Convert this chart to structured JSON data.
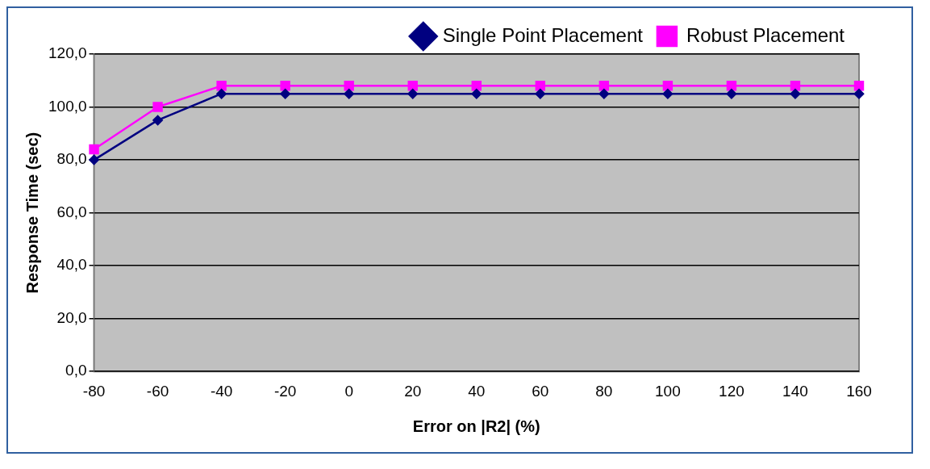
{
  "chart_data": {
    "type": "line",
    "xlabel": "Error on |R2| (%)",
    "ylabel": "Response Time (sec)",
    "categories": [
      "-80",
      "-60",
      "-40",
      "-20",
      "0",
      "20",
      "40",
      "60",
      "80",
      "100",
      "120",
      "140",
      "160"
    ],
    "series": [
      {
        "name": "Single Point Placement",
        "color": "#000080",
        "marker": "diamond",
        "values": [
          80,
          95,
          105,
          105,
          105,
          105,
          105,
          105,
          105,
          105,
          105,
          105,
          105
        ]
      },
      {
        "name": "Robust Placement",
        "color": "#ff00ff",
        "marker": "square",
        "values": [
          84,
          100,
          108,
          108,
          108,
          108,
          108,
          108,
          108,
          108,
          108,
          108,
          108
        ]
      }
    ],
    "ylim": [
      0,
      120
    ],
    "yticks": [
      {
        "value": 0,
        "label": "0,0"
      },
      {
        "value": 20,
        "label": "20,0"
      },
      {
        "value": 40,
        "label": "40,0"
      },
      {
        "value": 60,
        "label": "60,0"
      },
      {
        "value": 80,
        "label": "80,0"
      },
      {
        "value": 100,
        "label": "100,0"
      },
      {
        "value": 120,
        "label": "120,0"
      }
    ],
    "grid": "y",
    "legend": "top right"
  }
}
